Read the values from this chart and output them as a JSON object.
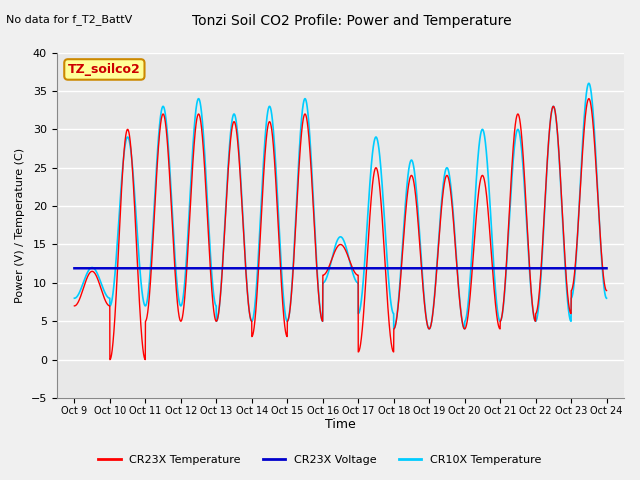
{
  "title": "Tonzi Soil CO2 Profile: Power and Temperature",
  "subtitle": "No data for f_T2_BattV",
  "xlabel": "Time",
  "ylabel": "Power (V) / Temperature (C)",
  "ylim": [
    -5,
    40
  ],
  "yticks": [
    -5,
    0,
    5,
    10,
    15,
    20,
    25,
    30,
    35,
    40
  ],
  "x_tick_labels": [
    "Oct 9",
    "Oct 10",
    "Oct 11",
    "Oct 12",
    "Oct 13",
    "Oct 14",
    "Oct 15",
    "Oct 16",
    "Oct 17",
    "Oct 18",
    "Oct 19",
    "Oct 20",
    "Oct 21",
    "Oct 22",
    "Oct 23",
    "Oct 24"
  ],
  "legend_entries": [
    "CR23X Temperature",
    "CR23X Voltage",
    "CR10X Temperature"
  ],
  "legend_colors": [
    "#ff0000",
    "#0000cc",
    "#00ccff"
  ],
  "voltage_value": 11.9,
  "fig_bg_color": "#f0f0f0",
  "plot_bg_color": "#e8e8e8",
  "grid_color": "#ffffff",
  "annotation_text": "TZ_soilco2",
  "annotation_bg": "#ffff99",
  "annotation_border": "#cc8800",
  "cr23x_peaks": [
    11.5,
    30,
    32,
    32,
    31,
    31,
    32,
    15,
    25,
    24,
    24,
    24,
    32,
    33,
    34
  ],
  "cr23x_troughs": [
    7,
    0,
    5,
    5,
    5,
    3,
    5,
    11,
    1,
    4,
    4,
    4,
    5,
    6,
    9
  ],
  "cr10x_peaks": [
    12,
    29,
    33,
    34,
    32,
    33,
    34,
    16,
    29,
    26,
    25,
    30,
    30,
    33,
    36
  ],
  "cr10x_troughs": [
    8,
    7,
    7,
    7,
    5,
    5,
    5,
    10,
    6,
    4,
    4,
    5,
    5,
    5,
    8
  ]
}
